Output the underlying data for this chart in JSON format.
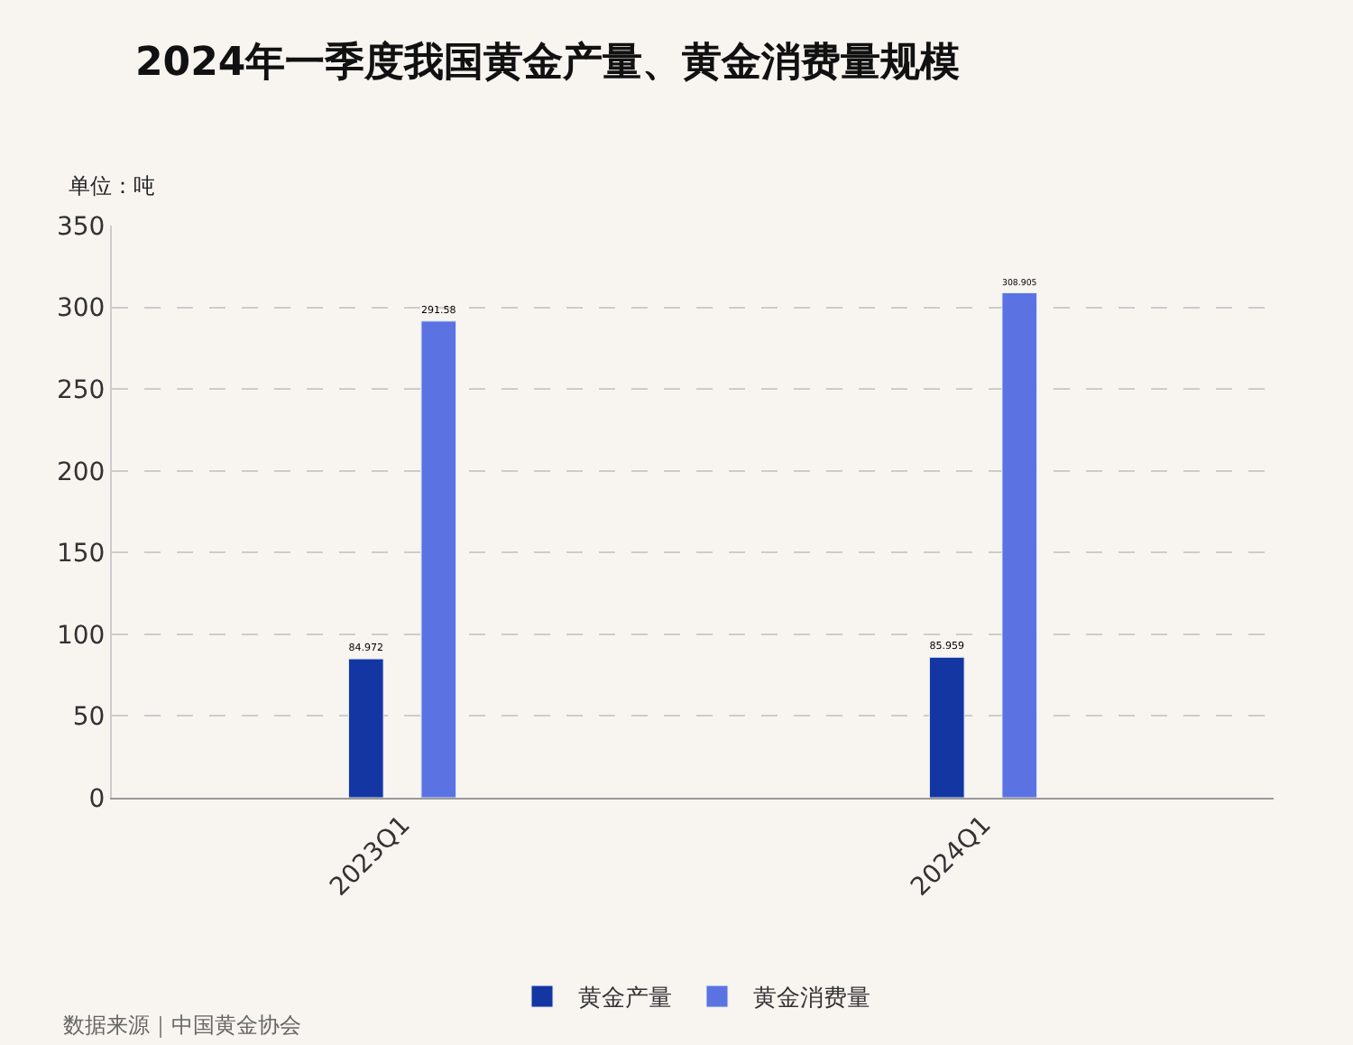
{
  "chart_data": {
    "type": "bar",
    "title": "2024年一季度我国黄金产量、黄金消费量规模",
    "ylabel": "单位：吨",
    "categories": [
      "2023Q1",
      "2024Q1"
    ],
    "series": [
      {
        "name": "黄金产量",
        "color": "#1336a3",
        "values": [
          84.972,
          85.959
        ]
      },
      {
        "name": "黄金消费量",
        "color": "#5a72e2",
        "values": [
          291.58,
          308.905
        ]
      }
    ],
    "ylim": [
      0,
      350
    ],
    "yticks": [
      0,
      50,
      100,
      150,
      200,
      250,
      300,
      350
    ],
    "grid": "y",
    "legend": "bottom",
    "data_labels": true,
    "annotations": [
      "数据来源｜中国黄金协会"
    ]
  }
}
